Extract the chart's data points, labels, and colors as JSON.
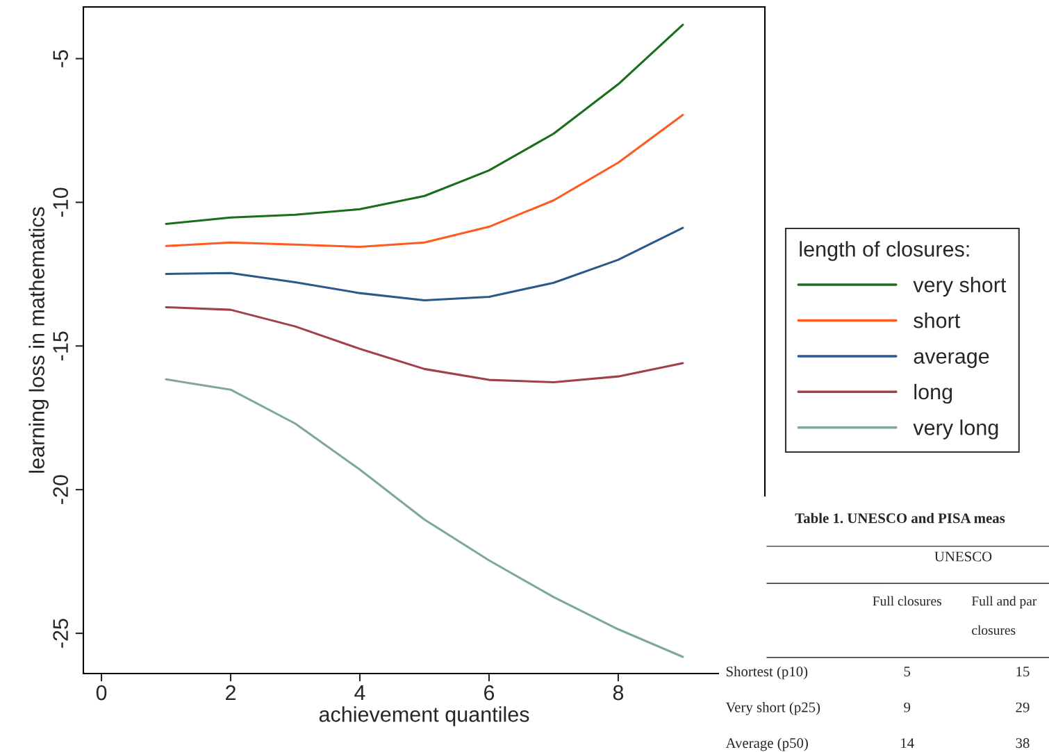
{
  "chart_data": [
    {
      "type": "line",
      "xlabel": "achievement quantiles",
      "ylabel": "learning loss in mathematics",
      "legend_title": "length of closures:",
      "legend": "right",
      "grid": false,
      "marker": "none",
      "line_style": "solid",
      "x": [
        1,
        2,
        3,
        4,
        5,
        6,
        7,
        8,
        9
      ],
      "xlim": [
        -0.28,
        10.27
      ],
      "xticks": [
        0,
        2,
        4,
        6,
        8
      ],
      "ylim": [
        -26.4,
        -3.2
      ],
      "yticks": [
        -25,
        -20,
        -15,
        -10,
        -5
      ],
      "series": [
        {
          "name": "very short",
          "color": "#1a6e1a",
          "values": [
            -10.75,
            -10.53,
            -10.43,
            -10.24,
            -9.78,
            -8.89,
            -7.61,
            -5.89,
            -3.82
          ]
        },
        {
          "name": "short",
          "color": "#ff5a1f",
          "values": [
            -11.52,
            -11.4,
            -11.47,
            -11.55,
            -11.4,
            -10.85,
            -9.93,
            -8.62,
            -6.96
          ]
        },
        {
          "name": "average",
          "color": "#2a5a8a",
          "values": [
            -12.49,
            -12.46,
            -12.78,
            -13.16,
            -13.41,
            -13.29,
            -12.8,
            -12.0,
            -10.89
          ]
        },
        {
          "name": "long",
          "color": "#a0404a",
          "values": [
            -13.65,
            -13.74,
            -14.32,
            -15.1,
            -15.8,
            -16.18,
            -16.26,
            -16.06,
            -15.6
          ]
        },
        {
          "name": "very long",
          "color": "#7fa898",
          "values": [
            -16.16,
            -16.52,
            -17.7,
            -19.3,
            -21.04,
            -22.46,
            -23.74,
            -24.86,
            -25.82
          ]
        }
      ]
    },
    {
      "type": "other",
      "title": "Table 1. UNESCO and PISA meas",
      "subtitle": "UNESCO",
      "categories": [
        "Full closures",
        "Full and par closures"
      ],
      "y_categories": [
        "Shortest (p10)",
        "Very short (p25)",
        "Average (p50)"
      ],
      "cell_labels": [
        [
          "5",
          "15"
        ],
        [
          "9",
          "29"
        ],
        [
          "14",
          "38"
        ]
      ]
    }
  ]
}
